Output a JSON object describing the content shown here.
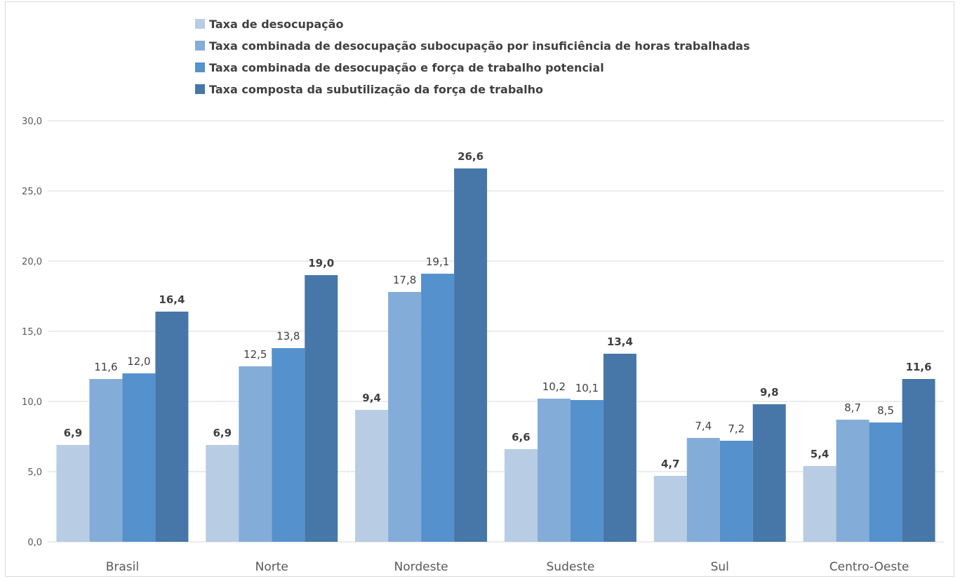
{
  "chart_data": {
    "type": "bar",
    "categories": [
      "Brasil",
      "Norte",
      "Nordeste",
      "Sudeste",
      "Sul",
      "Centro-Oeste"
    ],
    "series": [
      {
        "name": "Taxa de desocupação",
        "color": "#b8cce4",
        "bold_labels": true,
        "values": [
          6.9,
          6.9,
          9.4,
          6.6,
          4.7,
          5.4
        ],
        "labels": [
          "6,9",
          "6,9",
          "9,4",
          "6,6",
          "4,7",
          "5,4"
        ]
      },
      {
        "name": "Taxa combinada de desocupação subocupação por insuficiência de horas trabalhadas",
        "color": "#84acd9",
        "bold_labels": false,
        "values": [
          11.6,
          12.5,
          17.8,
          10.2,
          7.4,
          8.7
        ],
        "labels": [
          "11,6",
          "12,5",
          "17,8",
          "10,2",
          "7,4",
          "8,7"
        ]
      },
      {
        "name": "Taxa combinada de desocupação e força de trabalho potencial",
        "color": "#5591cc",
        "bold_labels": false,
        "values": [
          12.0,
          13.8,
          19.1,
          10.1,
          7.2,
          8.5
        ],
        "labels": [
          "12,0",
          "13,8",
          "19,1",
          "10,1",
          "7,2",
          "8,5"
        ]
      },
      {
        "name": "Taxa composta da subutilização da força de trabalho",
        "color": "#4677a8",
        "bold_labels": true,
        "values": [
          16.4,
          19.0,
          26.6,
          13.4,
          9.8,
          11.6
        ],
        "labels": [
          "16,4",
          "19,0",
          "26,6",
          "13,4",
          "9,8",
          "11,6"
        ]
      }
    ],
    "y_ticks": [
      0,
      5,
      10,
      15,
      20,
      25,
      30
    ],
    "y_tick_labels": [
      "0,0",
      "5,0",
      "10,0",
      "15,0",
      "20,0",
      "25,0",
      "30,0"
    ],
    "ylim": [
      0,
      30
    ],
    "grid": true,
    "grid_color": "#d9d9d9",
    "legend_position": "top-center"
  }
}
